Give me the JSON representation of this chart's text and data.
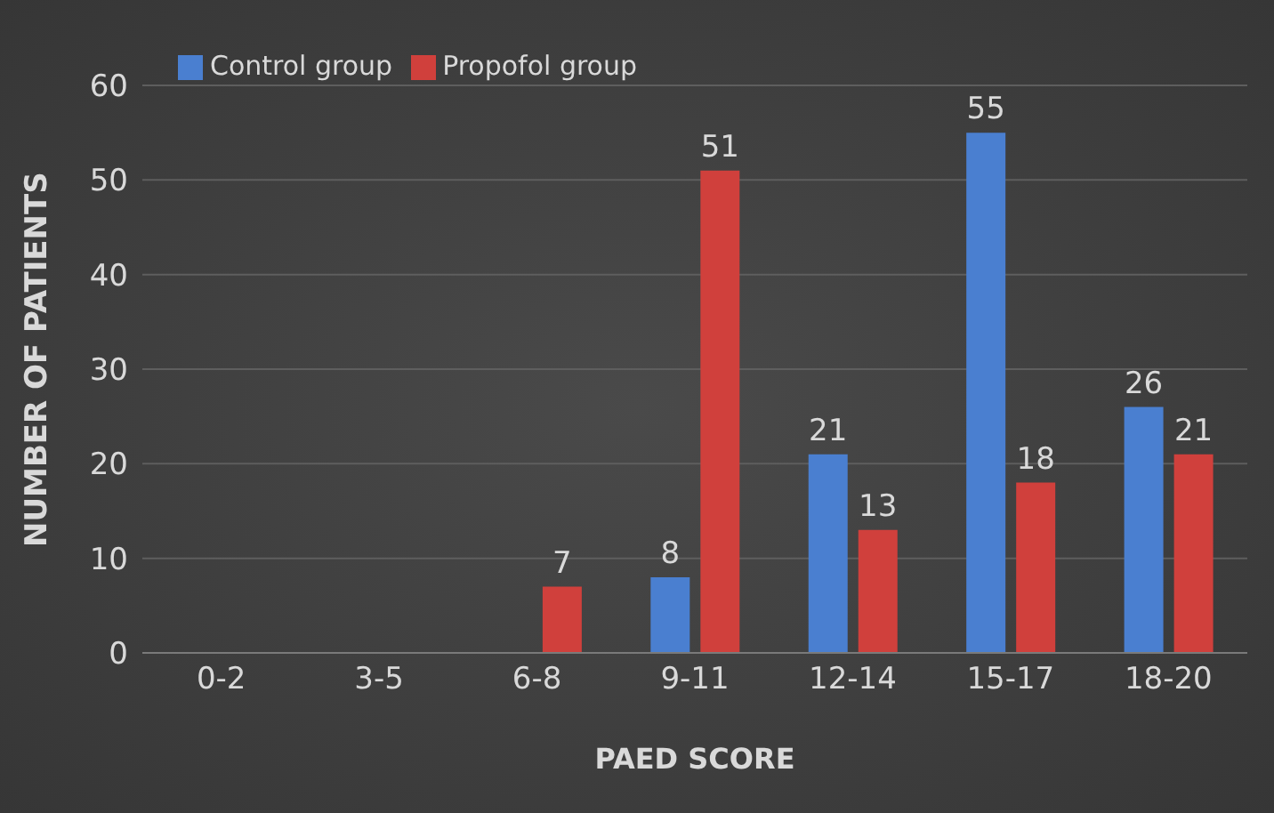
{
  "chart_data": {
    "type": "bar",
    "xlabel": "PAED SCORE",
    "ylabel": "NUMBER OF PATIENTS",
    "categories": [
      "0-2",
      "3-5",
      "6-8",
      "9-11",
      "12-14",
      "15-17",
      "18-20"
    ],
    "series": [
      {
        "name": "Control group",
        "color": "#4a7fd0",
        "values": [
          0,
          0,
          0,
          8,
          21,
          55,
          26
        ],
        "value_labels": [
          null,
          null,
          null,
          "8",
          "21",
          "55",
          "26"
        ]
      },
      {
        "name": "Propofol group",
        "color": "#d0403c",
        "values": [
          0,
          0,
          7,
          51,
          13,
          18,
          21
        ],
        "value_labels": [
          null,
          null,
          "7",
          "51",
          "13",
          "18",
          "21"
        ]
      }
    ],
    "ylim": [
      0,
      60
    ],
    "yticks": [
      0,
      10,
      20,
      30,
      40,
      50,
      60
    ],
    "grid": "y",
    "legend": "top left"
  }
}
